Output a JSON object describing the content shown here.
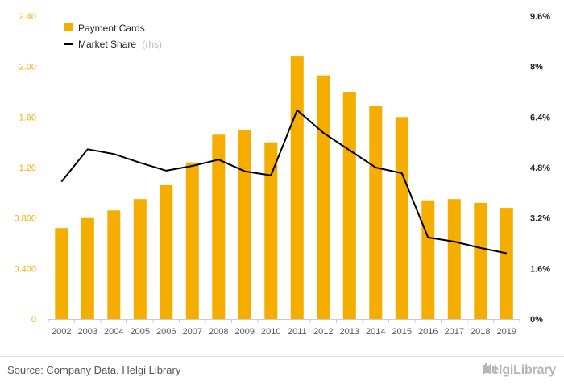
{
  "chart_data": {
    "type": "bar",
    "categories": [
      "2002",
      "2003",
      "2004",
      "2005",
      "2006",
      "2007",
      "2008",
      "2009",
      "2010",
      "2011",
      "2012",
      "2013",
      "2014",
      "2015",
      "2016",
      "2017",
      "2018",
      "2019"
    ],
    "series": [
      {
        "name": "Payment Cards",
        "type": "bar",
        "axis": "left",
        "color": "#f5ad00",
        "values": [
          0.72,
          0.8,
          0.86,
          0.95,
          1.06,
          1.24,
          1.46,
          1.5,
          1.4,
          2.08,
          1.93,
          1.8,
          1.69,
          1.6,
          0.94,
          0.95,
          0.92,
          0.88
        ]
      },
      {
        "name": "Market Share",
        "type": "line",
        "axis": "right",
        "color": "#000000",
        "values": [
          4.35,
          5.38,
          5.23,
          4.95,
          4.7,
          4.85,
          5.05,
          4.68,
          4.55,
          6.62,
          5.9,
          5.35,
          4.8,
          4.62,
          2.58,
          2.45,
          2.25,
          2.08
        ]
      }
    ],
    "y_left": {
      "ylim": [
        0,
        2.4
      ],
      "ticks": [
        0,
        0.4,
        0.8,
        1.2,
        1.6,
        2.0,
        2.4
      ],
      "tick_labels": [
        "0",
        "0.400",
        "0.800",
        "1.20",
        "1.60",
        "2.00",
        "2.40"
      ]
    },
    "y_right": {
      "ylim": [
        0,
        9.6
      ],
      "ticks": [
        0,
        1.6,
        3.2,
        4.8,
        6.4,
        8.0,
        9.6
      ],
      "tick_labels": [
        "0%",
        "1.6%",
        "3.2%",
        "4.8%",
        "6.4%",
        "8%",
        "9.6%"
      ]
    },
    "legend": {
      "placement": "top-left",
      "entries": [
        {
          "label": "Payment Cards",
          "suffix": ""
        },
        {
          "label": "Market Share",
          "suffix": "(rhs)"
        }
      ]
    },
    "grid": false
  },
  "footer": {
    "source": "Source: Company Data, Helgi Library",
    "brand": "HelgiLibrary",
    "brand_icon": "library-icon"
  }
}
